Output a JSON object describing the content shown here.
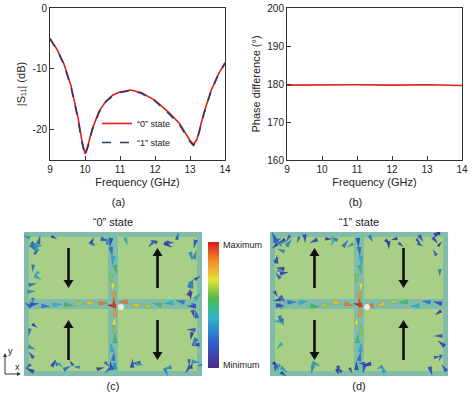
{
  "chart_data": [
    {
      "type": "line",
      "label": "(a)",
      "xlabel": "Frequency (GHz)",
      "ylabel": "|S₁₁| (dB)",
      "x": [
        9,
        9.2,
        9.4,
        9.6,
        9.8,
        9.9,
        10,
        10.1,
        10.2,
        10.4,
        10.6,
        10.8,
        11,
        11.3,
        11.6,
        12,
        12.4,
        12.7,
        13,
        13.1,
        13.2,
        13.4,
        13.6,
        13.8,
        14
      ],
      "series": [
        {
          "name": "“0” state",
          "color": "#e0201b",
          "line_style": "solid",
          "values": [
            -5,
            -6.8,
            -9.2,
            -12.8,
            -18,
            -21.5,
            -24,
            -22.3,
            -20,
            -17,
            -15.3,
            -14.3,
            -13.8,
            -13.5,
            -13.9,
            -15.2,
            -17.2,
            -19,
            -21.8,
            -22.4,
            -21.6,
            -17.2,
            -13.6,
            -11,
            -9
          ]
        },
        {
          "name": "“1” state",
          "color": "#2b3a67",
          "line_style": "dash",
          "values": [
            -5.1,
            -6.9,
            -9.3,
            -13,
            -18.3,
            -21.8,
            -24.3,
            -22.5,
            -20.2,
            -17.2,
            -15.4,
            -14.4,
            -13.9,
            -13.6,
            -14,
            -15.3,
            -17.4,
            -19.2,
            -22,
            -22.6,
            -21.8,
            -17.4,
            -13.7,
            -11.1,
            -9.1
          ]
        }
      ],
      "xlim": [
        9,
        14
      ],
      "xticks": [
        9,
        10,
        11,
        12,
        13,
        14
      ],
      "ylim": [
        -25,
        0
      ],
      "yticks": [
        -20,
        -10,
        0
      ],
      "legend": "bottom",
      "grid": false
    },
    {
      "type": "line",
      "label": "(b)",
      "xlabel": "Frequency (GHz)",
      "ylabel": "Phase difference (°)",
      "x": [
        9,
        10,
        11,
        12,
        13,
        14
      ],
      "values": [
        179.7,
        179.8,
        179.8,
        179.7,
        179.8,
        179.6
      ],
      "color": "#e0201b",
      "line_style": "solid",
      "xlim": [
        9,
        14
      ],
      "xticks": [
        9,
        10,
        11,
        12,
        13,
        14
      ],
      "ylim": [
        160,
        200
      ],
      "yticks": [
        160,
        170,
        180,
        190,
        200
      ],
      "grid": false
    }
  ],
  "field_panels": {
    "colorbar": {
      "max_label": "Maximum",
      "min_label": "Minimum"
    },
    "axes": {
      "x": "x",
      "y": "y"
    },
    "panels": [
      {
        "title": "“0” state",
        "label": "(c)"
      },
      {
        "title": "“1” state",
        "label": "(d)"
      }
    ]
  }
}
